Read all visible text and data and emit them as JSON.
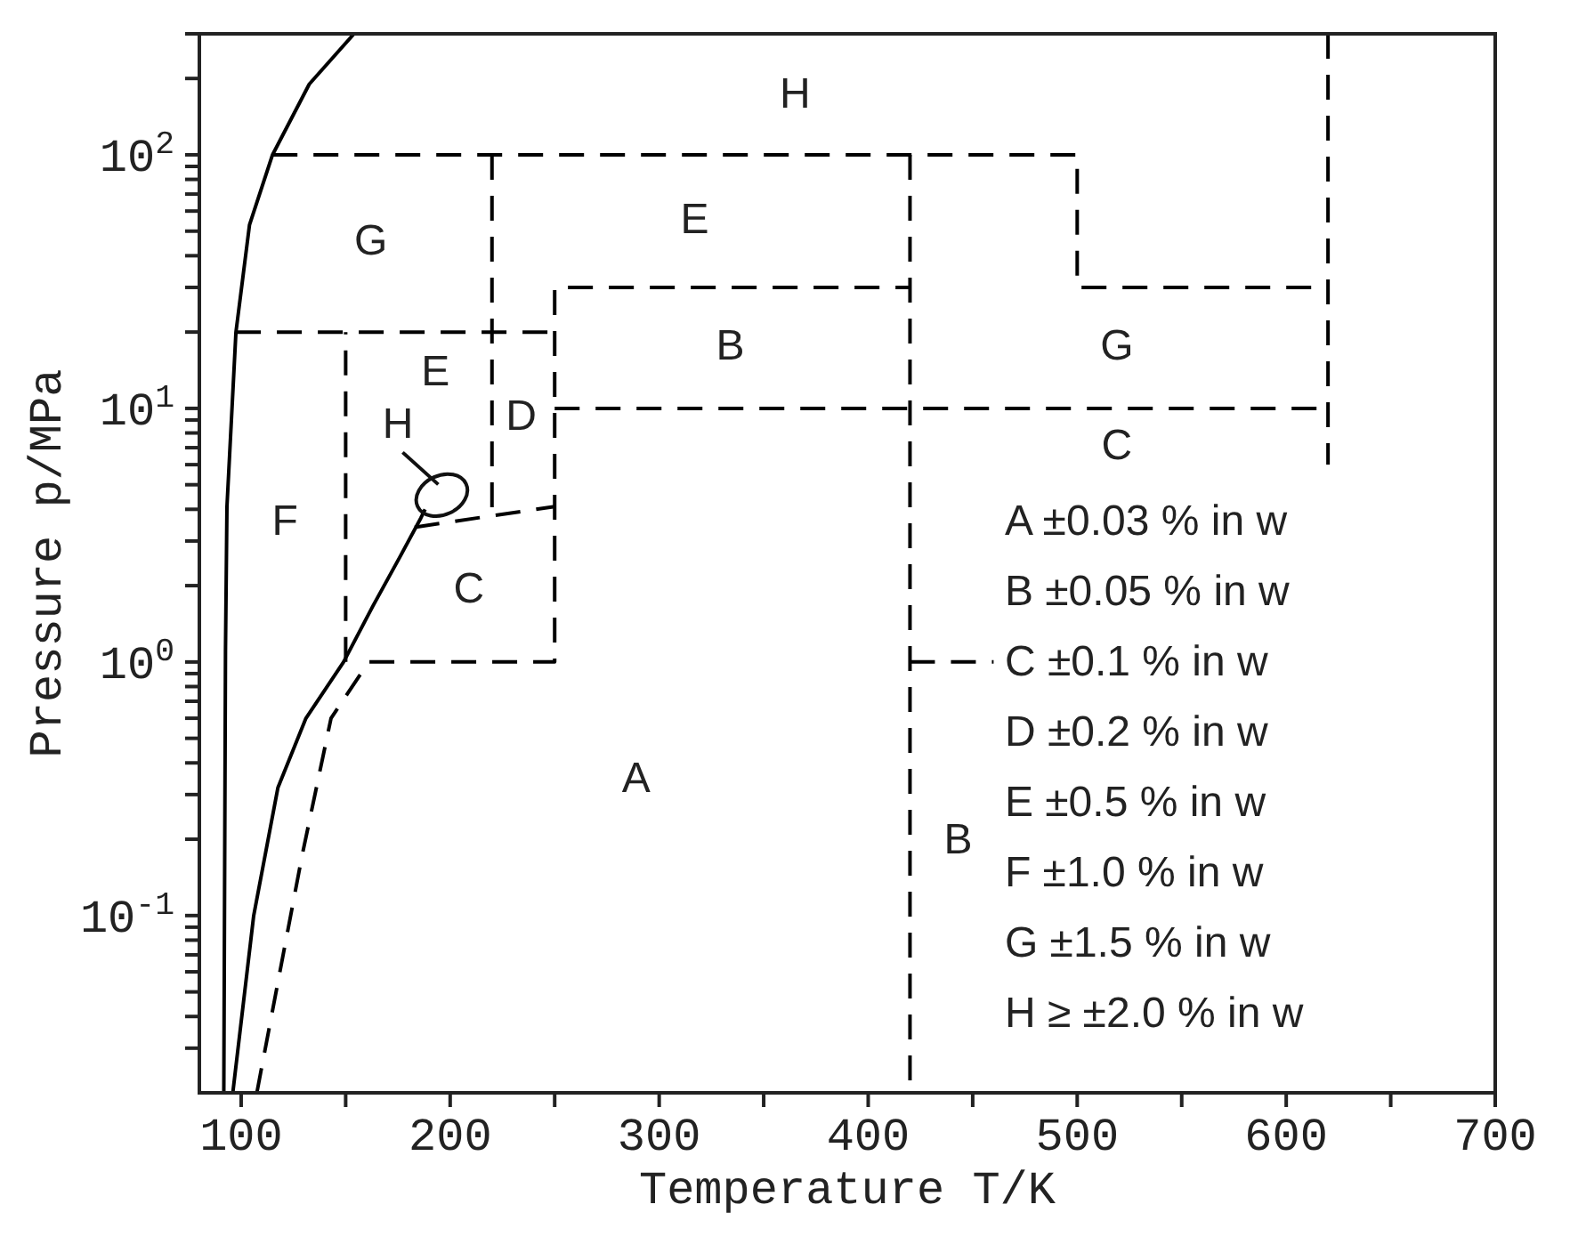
{
  "chart_data": {
    "type": "line",
    "xlabel": "Temperature T/K",
    "ylabel": "Pressure p/MPa",
    "log": "y",
    "xlim": [
      80,
      700
    ],
    "xticks": [
      100,
      {
        "value": 150,
        "label": null
      },
      200,
      {
        "value": 250,
        "label": null
      },
      300,
      {
        "value": 350,
        "label": null
      },
      400,
      {
        "value": 450,
        "label": null
      },
      500,
      {
        "value": 550,
        "label": null
      },
      600,
      {
        "value": 650,
        "label": null
      },
      700
    ],
    "ylim": [
      0.02,
      300
    ],
    "yticks": [
      {
        "value": 0.03,
        "label": null
      },
      {
        "value": 0.04,
        "label": null
      },
      {
        "value": 0.05,
        "label": null
      },
      {
        "value": 0.06,
        "label": null
      },
      {
        "value": 0.07,
        "label": null
      },
      {
        "value": 0.08,
        "label": null
      },
      {
        "value": 0.09,
        "label": null
      },
      {
        "value": 0.1,
        "label": "10$^{-1}$"
      },
      {
        "value": 0.2,
        "label": null
      },
      {
        "value": 0.3,
        "label": null
      },
      {
        "value": 0.4,
        "label": null
      },
      {
        "value": 0.5,
        "label": null
      },
      {
        "value": 0.6,
        "label": null
      },
      {
        "value": 0.7,
        "label": null
      },
      {
        "value": 0.8,
        "label": null
      },
      {
        "value": 0.9,
        "label": null
      },
      {
        "value": 1,
        "label": "10$^{0}$"
      },
      {
        "value": 2,
        "label": null
      },
      {
        "value": 3,
        "label": null
      },
      {
        "value": 4,
        "label": null
      },
      {
        "value": 5,
        "label": null
      },
      {
        "value": 6,
        "label": null
      },
      {
        "value": 7,
        "label": null
      },
      {
        "value": 8,
        "label": null
      },
      {
        "value": 9,
        "label": null
      },
      {
        "value": 10,
        "label": "10$^{1}$"
      },
      {
        "value": 20,
        "label": null
      },
      {
        "value": 30,
        "label": null
      },
      {
        "value": 40,
        "label": null
      },
      {
        "value": 50,
        "label": null
      },
      {
        "value": 60,
        "label": null
      },
      {
        "value": 70,
        "label": null
      },
      {
        "value": 80,
        "label": null
      },
      {
        "value": 90,
        "label": null
      },
      {
        "value": 100,
        "label": "10$^{2}$"
      },
      {
        "value": 200,
        "label": null
      },
      {
        "value": 300,
        "label": null
      }
    ],
    "series": [
      {
        "color": "#000000",
        "line_style": "solid",
        "x": [
          91.7,
          92.5,
          93.2,
          97.5,
          104,
          115,
          132.6,
          154
        ],
        "values": [
          0.02,
          1.1,
          4.1,
          20,
          53,
          100,
          190,
          300
        ]
      },
      {
        "color": "#000000",
        "line_style": "solid",
        "x": [
          96,
          106,
          117.6,
          131,
          149,
          163,
          176,
          186,
          188
        ],
        "values": [
          0.02,
          0.1,
          0.32,
          0.6,
          1.0,
          1.66,
          2.6,
          3.7,
          4.0
        ]
      },
      {
        "color": "#000000",
        "line_style": "dashed",
        "x": [
          107.5,
          129,
          143,
          161,
          250,
          250,
          420
        ],
        "values": [
          0.02,
          0.17,
          0.6,
          1,
          1,
          30,
          30
        ]
      },
      {
        "color": "#000000",
        "line_style": "dashed",
        "x": [
          150,
          150
        ],
        "values": [
          1,
          20
        ]
      },
      {
        "color": "#000000",
        "line_style": "dashed",
        "x": [
          97.5,
          250
        ],
        "values": [
          20,
          20
        ]
      },
      {
        "color": "#000000",
        "line_style": "dashed",
        "x": [
          115,
          500,
          500,
          620
        ],
        "values": [
          100,
          100,
          30,
          30
        ]
      },
      {
        "color": "#000000",
        "line_style": "dashed",
        "x": [
          620,
          620
        ],
        "values": [
          300,
          6
        ]
      },
      {
        "color": "#000000",
        "line_style": "dashed",
        "x": [
          220,
          220
        ],
        "values": [
          100,
          3.7
        ]
      },
      {
        "color": "#000000",
        "line_style": "dashed",
        "x": [
          183,
          250
        ],
        "values": [
          3.4,
          4.1
        ]
      },
      {
        "color": "#000000",
        "line_style": "dashed",
        "x": [
          250,
          620
        ],
        "values": [
          10,
          10
        ]
      },
      {
        "color": "#000000",
        "line_style": "dashed",
        "x": [
          420,
          420
        ],
        "values": [
          100,
          0.02
        ]
      },
      {
        "color": "#000000",
        "line_style": "dashed",
        "x": [
          420,
          460
        ],
        "values": [
          1,
          1
        ]
      }
    ],
    "annotations": [
      "H",
      "G",
      "E",
      "B",
      "G",
      "C",
      "E",
      "D",
      "H",
      "F",
      "C",
      "A",
      "B",
      "A ±0.03 % in w",
      "B ±0.05 % in w",
      "C ±0.1 % in w",
      "D ±0.2 % in w",
      "E ±0.5 % in w",
      "F ±1.0 % in w",
      "G ±1.5 % in w",
      "H ≥ ±2.0 % in w"
    ]
  }
}
